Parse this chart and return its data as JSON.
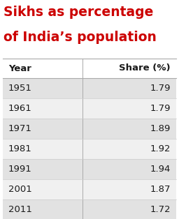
{
  "title_line1": "Sikhs as percentage",
  "title_line2": "of India’s population",
  "title_color": "#cc0000",
  "col1_header": "Year",
  "col2_header": "Share (%)",
  "years": [
    "1951",
    "1961",
    "1971",
    "1981",
    "1991",
    "2001",
    "2011"
  ],
  "shares": [
    "1.79",
    "1.79",
    "1.89",
    "1.92",
    "1.94",
    "1.87",
    "1.72"
  ],
  "row_bg_even": "#e2e2e2",
  "row_bg_odd": "#f0f0f0",
  "header_bg": "#ffffff",
  "bg_color": "#ffffff",
  "text_color": "#1a1a1a",
  "divider_color": "#aaaaaa",
  "header_fontsize": 9.5,
  "data_fontsize": 9.5,
  "title_fontsize": 13.5
}
